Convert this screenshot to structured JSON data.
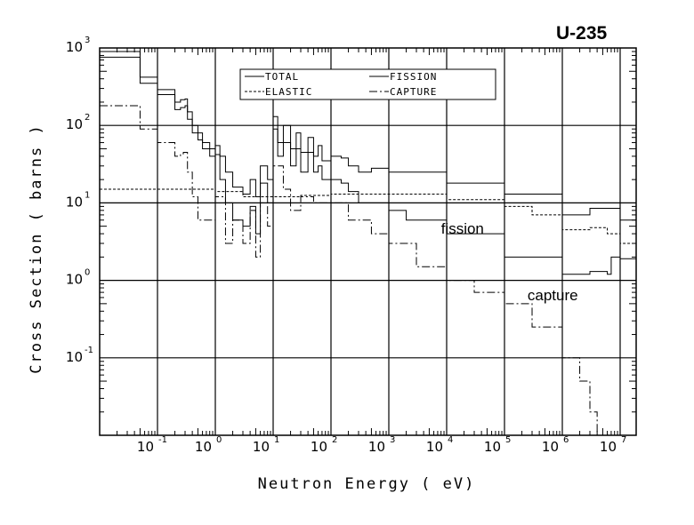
{
  "chart_data": {
    "type": "line",
    "title": "U-235",
    "xlabel": "Neutron Energy ( eV)",
    "ylabel": "Cross Section ( barns )",
    "xscale": "log",
    "yscale": "log",
    "xlim": [
      0.01,
      20000000
    ],
    "ylim": [
      0.01,
      1000
    ],
    "grid": true,
    "legend_placement": "top-center",
    "x_ticks": [
      {
        "base": "10",
        "exp": "-1"
      },
      {
        "base": "10",
        "exp": "0"
      },
      {
        "base": "10",
        "exp": "1"
      },
      {
        "base": "10",
        "exp": "2"
      },
      {
        "base": "10",
        "exp": "3"
      },
      {
        "base": "10",
        "exp": "4"
      },
      {
        "base": "10",
        "exp": "5"
      },
      {
        "base": "10",
        "exp": "6"
      },
      {
        "base": "10",
        "exp": "7"
      }
    ],
    "y_ticks": [
      {
        "base": "10",
        "exp": "3"
      },
      {
        "base": "10",
        "exp": "2"
      },
      {
        "base": "10",
        "exp": "1"
      },
      {
        "base": "10",
        "exp": "0"
      },
      {
        "base": "10",
        "exp": "-1"
      }
    ],
    "series": [
      {
        "name": "TOTAL",
        "style": "solid",
        "points": [
          [
            0.01,
            900
          ],
          [
            0.05,
            420
          ],
          [
            0.1,
            290
          ],
          [
            0.2,
            200
          ],
          [
            0.25,
            215
          ],
          [
            0.3,
            220
          ],
          [
            0.33,
            150
          ],
          [
            0.4,
            100
          ],
          [
            0.5,
            80
          ],
          [
            0.6,
            60
          ],
          [
            0.8,
            50
          ],
          [
            1,
            55
          ],
          [
            1.2,
            40
          ],
          [
            1.5,
            25
          ],
          [
            2,
            16
          ],
          [
            3,
            13
          ],
          [
            4,
            20
          ],
          [
            5,
            12
          ],
          [
            6,
            30
          ],
          [
            8,
            20
          ],
          [
            10,
            130
          ],
          [
            12,
            60
          ],
          [
            15,
            100
          ],
          [
            20,
            50
          ],
          [
            25,
            80
          ],
          [
            30,
            45
          ],
          [
            40,
            70
          ],
          [
            50,
            40
          ],
          [
            60,
            55
          ],
          [
            70,
            35
          ],
          [
            100,
            40
          ],
          [
            150,
            38
          ],
          [
            200,
            30
          ],
          [
            300,
            25
          ],
          [
            500,
            28
          ],
          [
            1000,
            25
          ],
          [
            10000,
            18
          ],
          [
            100000,
            13
          ],
          [
            1000000,
            7
          ],
          [
            3000000,
            8.5
          ],
          [
            10000000,
            6
          ],
          [
            20000000,
            6.5
          ]
        ]
      },
      {
        "name": "FISSION",
        "style": "solid",
        "points": [
          [
            0.01,
            760
          ],
          [
            0.05,
            350
          ],
          [
            0.1,
            250
          ],
          [
            0.2,
            160
          ],
          [
            0.25,
            170
          ],
          [
            0.3,
            180
          ],
          [
            0.33,
            120
          ],
          [
            0.4,
            80
          ],
          [
            0.5,
            65
          ],
          [
            0.6,
            50
          ],
          [
            0.8,
            40
          ],
          [
            1,
            42
          ],
          [
            1.2,
            20
          ],
          [
            1.5,
            10
          ],
          [
            2,
            6
          ],
          [
            3,
            5
          ],
          [
            4,
            9
          ],
          [
            5,
            4
          ],
          [
            6,
            18
          ],
          [
            8,
            10
          ],
          [
            10,
            90
          ],
          [
            12,
            40
          ],
          [
            15,
            60
          ],
          [
            20,
            30
          ],
          [
            25,
            50
          ],
          [
            30,
            25
          ],
          [
            40,
            45
          ],
          [
            50,
            25
          ],
          [
            60,
            30
          ],
          [
            70,
            20
          ],
          [
            100,
            20
          ],
          [
            150,
            18
          ],
          [
            200,
            14
          ],
          [
            300,
            10
          ],
          [
            1000,
            8
          ],
          [
            2000,
            6
          ],
          [
            10000,
            4
          ],
          [
            100000,
            2
          ],
          [
            1000000,
            1.2
          ],
          [
            3000000,
            1.3
          ],
          [
            6000000,
            1.2
          ],
          [
            7000000,
            2
          ],
          [
            10000000,
            1.9
          ],
          [
            20000000,
            2.1
          ]
        ]
      },
      {
        "name": "ELASTIC",
        "style": "dashed",
        "points": [
          [
            0.01,
            15
          ],
          [
            0.1,
            15
          ],
          [
            1,
            14
          ],
          [
            3,
            12
          ],
          [
            10,
            12
          ],
          [
            30,
            12.5
          ],
          [
            100,
            13
          ],
          [
            300,
            13
          ],
          [
            1000,
            13
          ],
          [
            10000,
            11
          ],
          [
            100000,
            9
          ],
          [
            300000,
            7
          ],
          [
            1000000,
            4.5
          ],
          [
            3000000,
            4.8
          ],
          [
            6000000,
            4
          ],
          [
            10000000,
            3
          ],
          [
            20000000,
            3.5
          ]
        ]
      },
      {
        "name": "CAPTURE",
        "style": "dash-dot",
        "points": [
          [
            0.01,
            180
          ],
          [
            0.05,
            90
          ],
          [
            0.1,
            60
          ],
          [
            0.2,
            40
          ],
          [
            0.25,
            43
          ],
          [
            0.28,
            45
          ],
          [
            0.33,
            25
          ],
          [
            0.4,
            12
          ],
          [
            0.5,
            6
          ],
          [
            0.7,
            6
          ],
          [
            1,
            12
          ],
          [
            1.5,
            3
          ],
          [
            2,
            6
          ],
          [
            3,
            3
          ],
          [
            4,
            8
          ],
          [
            5,
            2
          ],
          [
            6,
            10
          ],
          [
            8,
            5
          ],
          [
            10,
            30
          ],
          [
            15,
            15
          ],
          [
            20,
            8
          ],
          [
            30,
            12
          ],
          [
            50,
            10
          ],
          [
            100,
            10
          ],
          [
            200,
            6
          ],
          [
            500,
            4
          ],
          [
            1000,
            3
          ],
          [
            3000,
            1.5
          ],
          [
            10000,
            1
          ],
          [
            30000,
            0.7
          ],
          [
            100000,
            0.5
          ],
          [
            300000,
            0.25
          ],
          [
            1000000,
            0.1
          ],
          [
            2000000,
            0.05
          ],
          [
            3000000,
            0.02
          ],
          [
            4000000,
            0.01
          ]
        ]
      }
    ],
    "annotations": [
      {
        "text": "fission",
        "x": 8000,
        "y": 4
      },
      {
        "text": "capture",
        "x": 250000,
        "y": 0.55
      }
    ]
  }
}
